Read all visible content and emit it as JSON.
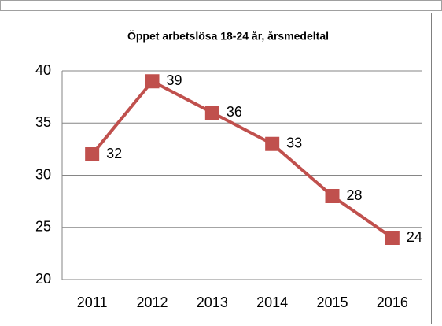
{
  "chart_data": {
    "type": "line",
    "title": "Öppet arbetslösa 18-24 år, årsmedeltal",
    "categories": [
      "2011",
      "2012",
      "2013",
      "2014",
      "2015",
      "2016"
    ],
    "series": [
      {
        "name": "Öppet arbetslösa 18-24 år",
        "color": "#c0504d",
        "values": [
          32,
          39,
          36,
          33,
          28,
          24
        ]
      }
    ],
    "ylim": [
      20,
      40
    ],
    "yticks": [
      20,
      25,
      30,
      35,
      40
    ],
    "grid": true
  }
}
